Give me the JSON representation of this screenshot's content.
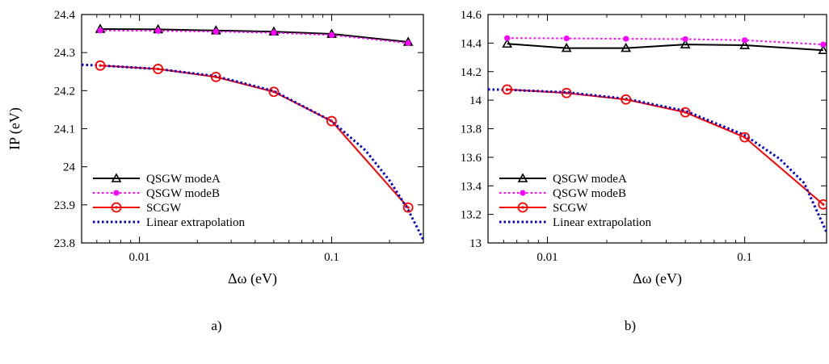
{
  "chart_data": [
    {
      "type": "line",
      "caption": "a)",
      "xlabel": "Δω (eV)",
      "ylabel": "IP (eV)",
      "xscale": "log",
      "xlim": [
        0.005,
        0.3
      ],
      "ylim": [
        23.8,
        24.4
      ],
      "xticks": [
        0.01,
        0.1
      ],
      "xtick_labels": [
        "0.01",
        "0.1"
      ],
      "yticks": [
        23.8,
        23.9,
        24.0,
        24.1,
        24.2,
        24.3,
        24.4
      ],
      "ytick_labels": [
        "23.8",
        "23.9",
        "24",
        "24.1",
        "24.2",
        "24.3",
        "24.4"
      ],
      "legend_position": "bottom-left",
      "grid": false,
      "series": [
        {
          "name": "QSGW modeA",
          "color": "#000000",
          "dash": "solid",
          "marker": "triangle",
          "x": [
            0.00625,
            0.0125,
            0.025,
            0.05,
            0.1,
            0.25
          ],
          "y": [
            24.362,
            24.361,
            24.358,
            24.355,
            24.349,
            24.328
          ]
        },
        {
          "name": "QSGW modeB",
          "color": "#ff00ff",
          "dash": "dotted",
          "marker": "dot",
          "x": [
            0.00625,
            0.0125,
            0.025,
            0.05,
            0.1,
            0.25
          ],
          "y": [
            24.358,
            24.357,
            24.355,
            24.352,
            24.346,
            24.325
          ]
        },
        {
          "name": "SCGW",
          "color": "#ff0000",
          "dash": "solid",
          "marker": "circle",
          "x": [
            0.00625,
            0.0125,
            0.025,
            0.05,
            0.1,
            0.25
          ],
          "y": [
            24.266,
            24.257,
            24.236,
            24.197,
            24.12,
            23.893
          ]
        },
        {
          "name": "Linear extrapolation",
          "color": "#0000cc",
          "dash": "dotted",
          "marker": "none",
          "x": [
            0.005,
            0.00625,
            0.0125,
            0.025,
            0.05,
            0.1,
            0.15,
            0.2,
            0.25,
            0.3
          ],
          "y": [
            24.268,
            24.266,
            24.257,
            24.238,
            24.199,
            24.12,
            24.043,
            23.964,
            23.887,
            23.808
          ]
        }
      ]
    },
    {
      "type": "line",
      "caption": "b)",
      "xlabel": "Δω (eV)",
      "ylabel": "",
      "xscale": "log",
      "xlim": [
        0.005,
        0.26
      ],
      "ylim": [
        13.0,
        14.6
      ],
      "xticks": [
        0.01,
        0.1
      ],
      "xtick_labels": [
        "0.01",
        "0.1"
      ],
      "yticks": [
        13.0,
        13.2,
        13.4,
        13.6,
        13.8,
        14.0,
        14.2,
        14.4,
        14.6
      ],
      "ytick_labels": [
        "13",
        "13.2",
        "13.4",
        "13.6",
        "13.8",
        "14",
        "14.2",
        "14.4",
        "14.6"
      ],
      "legend_position": "bottom-left",
      "grid": false,
      "series": [
        {
          "name": "QSGW modeA",
          "color": "#000000",
          "dash": "solid",
          "marker": "triangle",
          "x": [
            0.00625,
            0.0125,
            0.025,
            0.05,
            0.1,
            0.25
          ],
          "y": [
            14.395,
            14.365,
            14.365,
            14.39,
            14.385,
            14.35
          ]
        },
        {
          "name": "QSGW modeB",
          "color": "#ff00ff",
          "dash": "dotted",
          "marker": "dot",
          "x": [
            0.00625,
            0.0125,
            0.025,
            0.05,
            0.1,
            0.25
          ],
          "y": [
            14.435,
            14.433,
            14.43,
            14.428,
            14.42,
            14.39
          ]
        },
        {
          "name": "SCGW",
          "color": "#ff0000",
          "dash": "solid",
          "marker": "circle",
          "x": [
            0.00625,
            0.0125,
            0.025,
            0.05,
            0.1,
            0.25
          ],
          "y": [
            14.075,
            14.05,
            14.005,
            13.915,
            13.74,
            13.27
          ]
        },
        {
          "name": "Linear extrapolation",
          "color": "#0000cc",
          "dash": "dotted",
          "marker": "none",
          "x": [
            0.005,
            0.00625,
            0.0125,
            0.025,
            0.05,
            0.1,
            0.15,
            0.2,
            0.26
          ],
          "y": [
            14.075,
            14.073,
            14.055,
            14.01,
            13.925,
            13.755,
            13.59,
            13.42,
            13.075
          ]
        }
      ]
    }
  ]
}
